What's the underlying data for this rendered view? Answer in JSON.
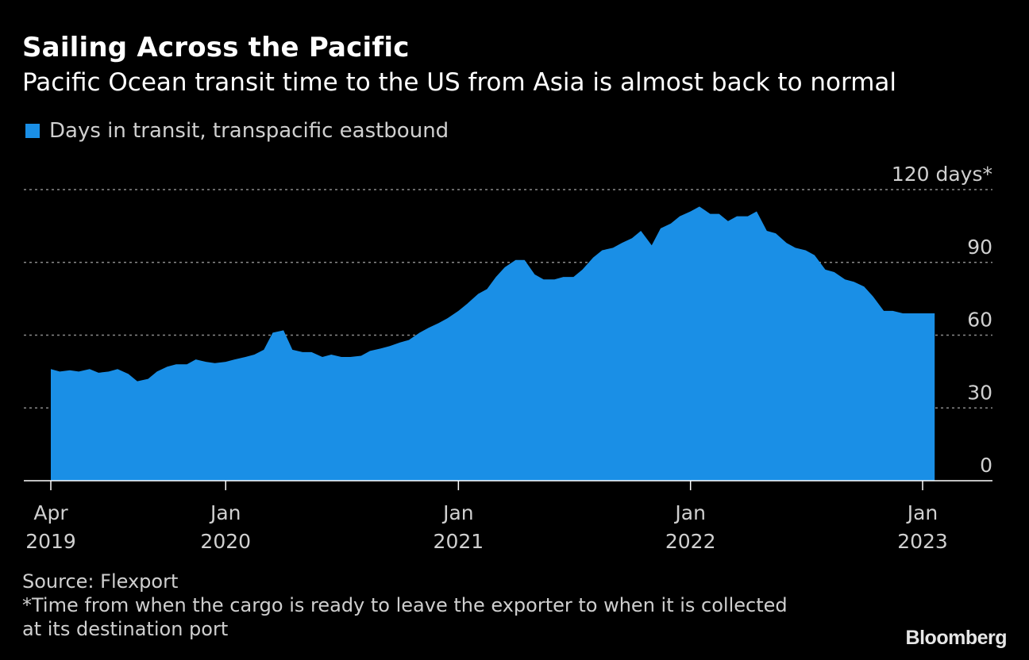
{
  "title": "Sailing Across the Pacific",
  "subtitle": "Pacific Ocean transit time to the US from Asia is almost back to normal",
  "legend": {
    "label": "Days in transit, transpacific eastbound",
    "color": "#1a8fe6"
  },
  "footer": {
    "source": "Source: Flexport",
    "note_line1": "*Time from when the cargo is ready to leave the exporter to when it is collected",
    "note_line2": "at its destination port"
  },
  "brand": "Bloomberg",
  "chart_data": {
    "type": "area",
    "title": "Sailing Across the Pacific",
    "subtitle": "Pacific Ocean transit time to the US from Asia is almost back to normal",
    "series": [
      {
        "name": "Days in transit, transpacific eastbound",
        "color": "#1a8fe6",
        "points": [
          [
            "2019-04-01",
            46
          ],
          [
            "2019-04-15",
            45
          ],
          [
            "2019-05-01",
            45.5
          ],
          [
            "2019-05-15",
            45
          ],
          [
            "2019-06-01",
            46
          ],
          [
            "2019-06-15",
            44.5
          ],
          [
            "2019-07-01",
            45
          ],
          [
            "2019-07-15",
            46
          ],
          [
            "2019-08-01",
            44
          ],
          [
            "2019-08-15",
            41
          ],
          [
            "2019-09-01",
            42
          ],
          [
            "2019-09-15",
            45
          ],
          [
            "2019-10-01",
            47
          ],
          [
            "2019-10-15",
            48
          ],
          [
            "2019-11-01",
            48
          ],
          [
            "2019-11-15",
            50
          ],
          [
            "2019-12-01",
            49
          ],
          [
            "2019-12-15",
            48.5
          ],
          [
            "2020-01-01",
            49
          ],
          [
            "2020-01-15",
            50
          ],
          [
            "2020-02-01",
            51
          ],
          [
            "2020-02-15",
            52
          ],
          [
            "2020-03-01",
            54
          ],
          [
            "2020-03-15",
            61
          ],
          [
            "2020-04-01",
            62
          ],
          [
            "2020-04-15",
            54
          ],
          [
            "2020-05-01",
            53
          ],
          [
            "2020-05-15",
            53
          ],
          [
            "2020-06-01",
            51
          ],
          [
            "2020-06-15",
            52
          ],
          [
            "2020-07-01",
            51
          ],
          [
            "2020-07-15",
            51
          ],
          [
            "2020-08-01",
            51.5
          ],
          [
            "2020-08-15",
            53.5
          ],
          [
            "2020-09-01",
            54.5
          ],
          [
            "2020-09-15",
            55.5
          ],
          [
            "2020-10-01",
            57
          ],
          [
            "2020-10-15",
            58
          ],
          [
            "2020-11-01",
            61
          ],
          [
            "2020-11-15",
            63
          ],
          [
            "2020-12-01",
            65
          ],
          [
            "2020-12-15",
            67
          ],
          [
            "2021-01-01",
            70
          ],
          [
            "2021-01-15",
            73
          ],
          [
            "2021-02-01",
            77
          ],
          [
            "2021-02-15",
            79
          ],
          [
            "2021-03-01",
            84
          ],
          [
            "2021-03-15",
            88
          ],
          [
            "2021-04-01",
            91
          ],
          [
            "2021-04-15",
            91
          ],
          [
            "2021-05-01",
            85
          ],
          [
            "2021-05-15",
            83
          ],
          [
            "2021-06-01",
            83
          ],
          [
            "2021-06-15",
            84
          ],
          [
            "2021-07-01",
            84
          ],
          [
            "2021-07-15",
            87
          ],
          [
            "2021-08-01",
            92
          ],
          [
            "2021-08-15",
            95
          ],
          [
            "2021-09-01",
            96
          ],
          [
            "2021-09-15",
            98
          ],
          [
            "2021-10-01",
            100
          ],
          [
            "2021-10-15",
            103
          ],
          [
            "2021-11-01",
            97
          ],
          [
            "2021-11-15",
            104
          ],
          [
            "2021-12-01",
            106
          ],
          [
            "2021-12-15",
            109
          ],
          [
            "2022-01-01",
            111
          ],
          [
            "2022-01-15",
            113
          ],
          [
            "2022-02-01",
            110
          ],
          [
            "2022-02-15",
            110
          ],
          [
            "2022-03-01",
            107
          ],
          [
            "2022-03-15",
            109
          ],
          [
            "2022-04-01",
            109
          ],
          [
            "2022-04-15",
            111
          ],
          [
            "2022-05-01",
            103
          ],
          [
            "2022-05-15",
            102
          ],
          [
            "2022-06-01",
            98
          ],
          [
            "2022-06-15",
            96
          ],
          [
            "2022-07-01",
            95
          ],
          [
            "2022-07-15",
            93
          ],
          [
            "2022-08-01",
            87
          ],
          [
            "2022-08-15",
            86
          ],
          [
            "2022-09-01",
            83
          ],
          [
            "2022-09-15",
            82
          ],
          [
            "2022-10-01",
            80
          ],
          [
            "2022-10-15",
            76
          ],
          [
            "2022-11-01",
            70
          ],
          [
            "2022-11-15",
            70
          ],
          [
            "2022-12-01",
            69
          ],
          [
            "2023-01-01",
            69
          ]
        ]
      }
    ],
    "x_ticks": [
      {
        "date": "2019-04-01",
        "line1": "Apr",
        "line2": "2019"
      },
      {
        "date": "2020-01-01",
        "line1": "Jan",
        "line2": "2020"
      },
      {
        "date": "2021-01-01",
        "line1": "Jan",
        "line2": "2021"
      },
      {
        "date": "2022-01-01",
        "line1": "Jan",
        "line2": "2022"
      },
      {
        "date": "2023-01-01",
        "line1": "Jan",
        "line2": "2023"
      }
    ],
    "y_ticks": [
      {
        "value": 0,
        "label": "0"
      },
      {
        "value": 30,
        "label": "30"
      },
      {
        "value": 60,
        "label": "60"
      },
      {
        "value": 90,
        "label": "90"
      },
      {
        "value": 120,
        "label": "120 days*"
      }
    ],
    "xlim": [
      "2019-04-01",
      "2023-01-20"
    ],
    "ylim": [
      0,
      120
    ],
    "grid": true,
    "grid_style": "dotted",
    "axis_position": "right",
    "colors": {
      "grid": "#8a8a8a",
      "axis": "#ffffff",
      "tick_text": "#d0d0d0"
    }
  }
}
